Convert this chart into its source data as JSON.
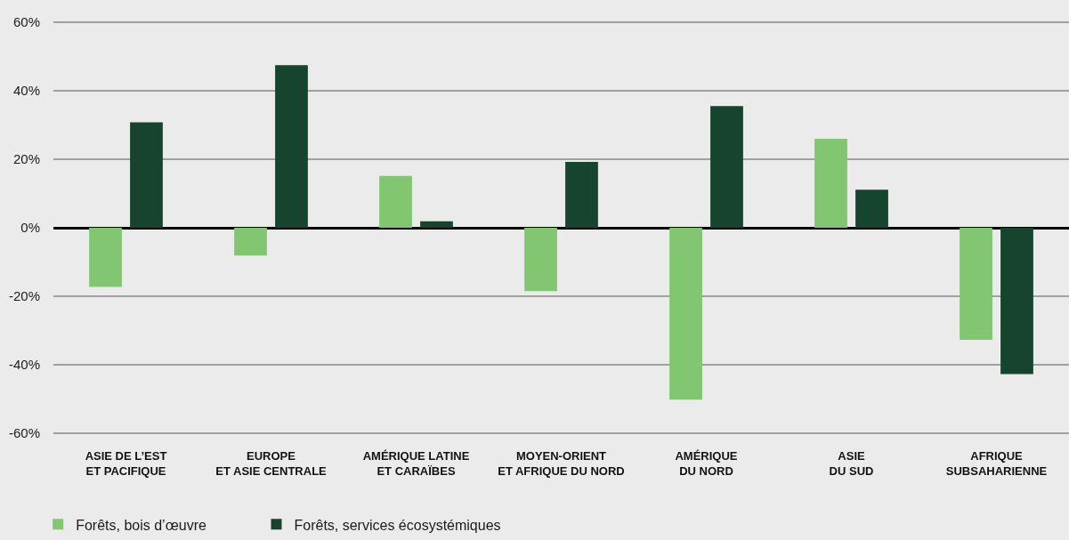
{
  "chart_data": {
    "type": "bar",
    "categories": [
      "ASIE DE L’EST\nET PACIFIQUE",
      "EUROPE\nET ASIE CENTRALE",
      "AMÉRIQUE LATINE\nET CARAÏBES",
      "MOYEN-ORIENT\nET AFRIQUE DU NORD",
      "AMÉRIQUE\nDU NORD",
      "ASIE\nDU SUD",
      "AFRIQUE\nSUBSAHARIENNE"
    ],
    "series": [
      {
        "name": "Forêts, bois d’œuvre",
        "color": "#82c672",
        "values": [
          -17.3,
          -8.1,
          15.1,
          -18.5,
          -50.2,
          26.0,
          -32.7
        ]
      },
      {
        "name": "Forêts, services écosystémiques",
        "color": "#16442e",
        "values": [
          30.8,
          47.5,
          1.9,
          19.2,
          35.5,
          11.1,
          -42.7
        ]
      }
    ],
    "ylim": [
      -60,
      60
    ],
    "yticks": [
      {
        "value": -60,
        "label": "-60%"
      },
      {
        "value": -40,
        "label": "-40%"
      },
      {
        "value": -20,
        "label": "-20%"
      },
      {
        "value": 0,
        "label": "0%"
      },
      {
        "value": 20,
        "label": "20%"
      },
      {
        "value": 40,
        "label": "40%"
      },
      {
        "value": 60,
        "label": "60%"
      }
    ],
    "grid": "y",
    "legend": "bottom left"
  }
}
